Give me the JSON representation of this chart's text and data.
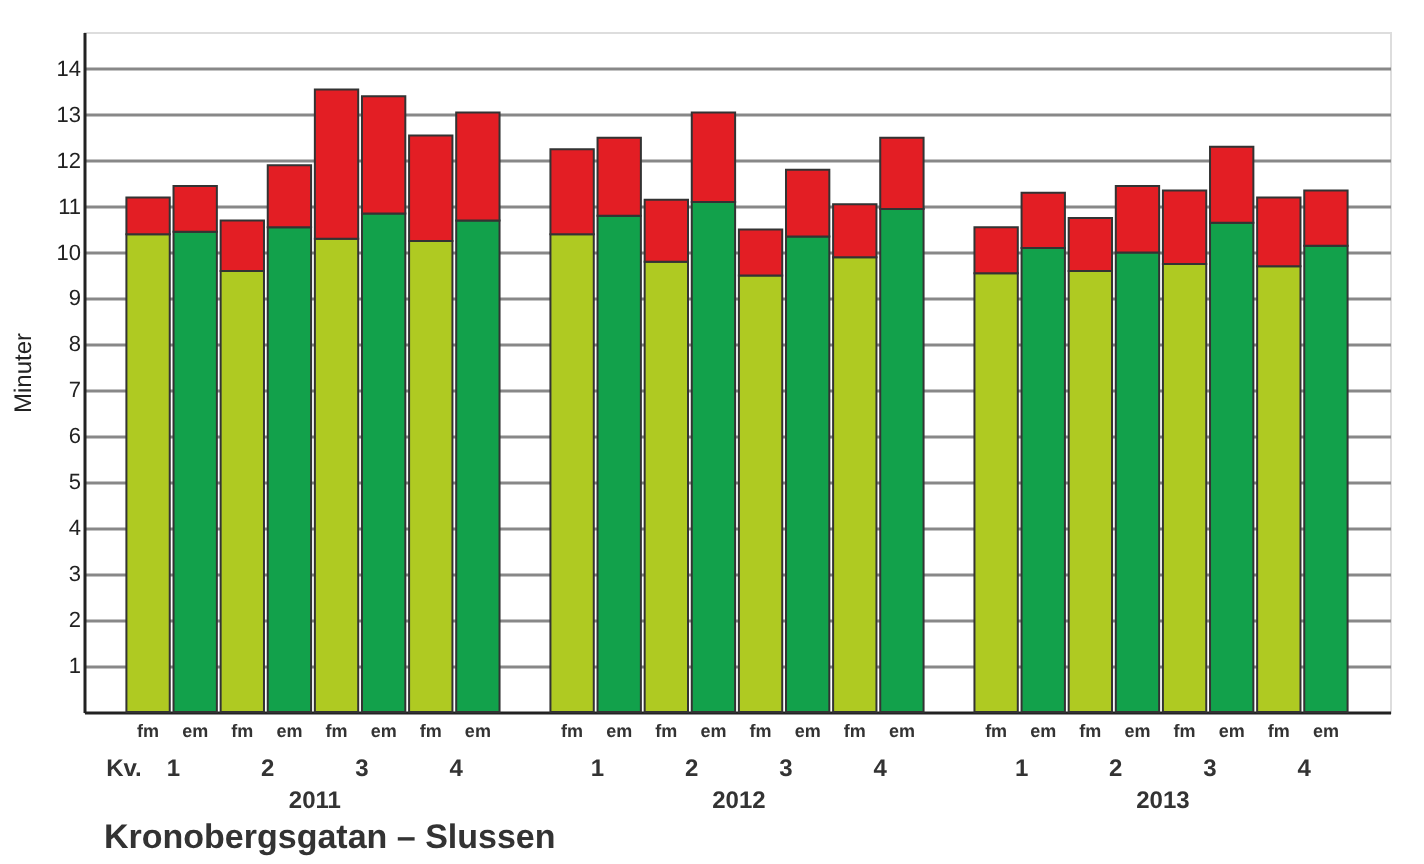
{
  "chart_data": {
    "type": "bar",
    "title": "Kronobergsgatan – Slussen",
    "ylabel": "Minuter",
    "categories": [
      "fm",
      "em",
      "fm",
      "em",
      "fm",
      "em",
      "fm",
      "em",
      null,
      "fm",
      "em",
      "fm",
      "em",
      "fm",
      "em",
      "fm",
      "em",
      null,
      "fm",
      "em",
      "fm",
      "em",
      "fm",
      "em",
      "fm",
      "em"
    ],
    "stacked": true,
    "series": [
      {
        "colors": [
          "#afca22",
          "#12a14b",
          "#afca22",
          "#12a14b",
          "#afca22",
          "#12a14b",
          "#afca22",
          "#12a14b",
          null,
          "#afca22",
          "#12a14b",
          "#afca22",
          "#12a14b",
          "#afca22",
          "#12a14b",
          "#afca22",
          "#12a14b",
          null,
          "#afca22",
          "#12a14b",
          "#afca22",
          "#12a14b",
          "#afca22",
          "#12a14b",
          "#afca22",
          "#12a14b"
        ],
        "values": [
          10.4,
          10.45,
          9.6,
          10.55,
          10.3,
          10.85,
          10.25,
          10.7,
          null,
          10.4,
          10.8,
          9.8,
          11.1,
          9.5,
          10.35,
          9.9,
          10.95,
          null,
          9.55,
          10.1,
          9.6,
          10.0,
          9.75,
          10.65,
          9.7,
          10.15
        ]
      },
      {
        "color": "#e31e24",
        "values": [
          0.8,
          1.0,
          1.1,
          1.35,
          3.25,
          2.55,
          2.3,
          2.35,
          null,
          1.85,
          1.7,
          1.35,
          1.95,
          1.0,
          1.45,
          1.15,
          1.55,
          null,
          1.0,
          1.2,
          1.15,
          1.45,
          1.6,
          1.65,
          1.5,
          1.2
        ]
      }
    ],
    "annotations": [
      "Kv.",
      "1",
      "2",
      "3",
      "4",
      "1",
      "2",
      "3",
      "4",
      "1",
      "2",
      "3",
      "4",
      "2011",
      "2012",
      "2013"
    ],
    "ylim": [
      0,
      14.8
    ],
    "yticks": [
      1,
      2,
      3,
      4,
      5,
      6,
      7,
      8,
      9,
      10,
      11,
      12,
      13,
      14
    ],
    "grid": "y"
  }
}
